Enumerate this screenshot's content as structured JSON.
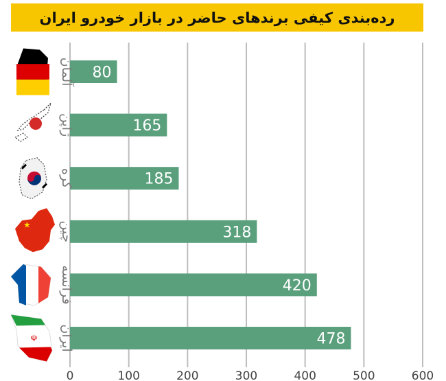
{
  "title": "رده‌بندی کیفی برندهای حاضر در بازار خودرو ایران",
  "colors": {
    "title_bg": "#f7c600",
    "bar": "#5aa07c",
    "bar_label": "#ffffff",
    "grid": "#bdbdbd",
    "axis_label": "#7a7a7a",
    "tick_label": "#444444"
  },
  "chart_data": {
    "type": "bar",
    "orientation": "horizontal",
    "title": "رده‌بندی کیفی برندهای حاضر در بازار خودرو ایران",
    "categories": [
      "آلمان",
      "ژاپن",
      "کره",
      "چین",
      "فرانسه",
      "ایران"
    ],
    "values": [
      80,
      165,
      185,
      318,
      420,
      478
    ],
    "flag_icons": [
      "germany-map-flag-icon",
      "japan-map-flag-icon",
      "korea-map-flag-icon",
      "china-map-flag-icon",
      "france-map-flag-icon",
      "iran-map-flag-icon"
    ],
    "xlim": [
      0,
      600
    ],
    "xticks": [
      0,
      100,
      200,
      300,
      400,
      500,
      600
    ],
    "grid": true,
    "data_labels": true
  }
}
